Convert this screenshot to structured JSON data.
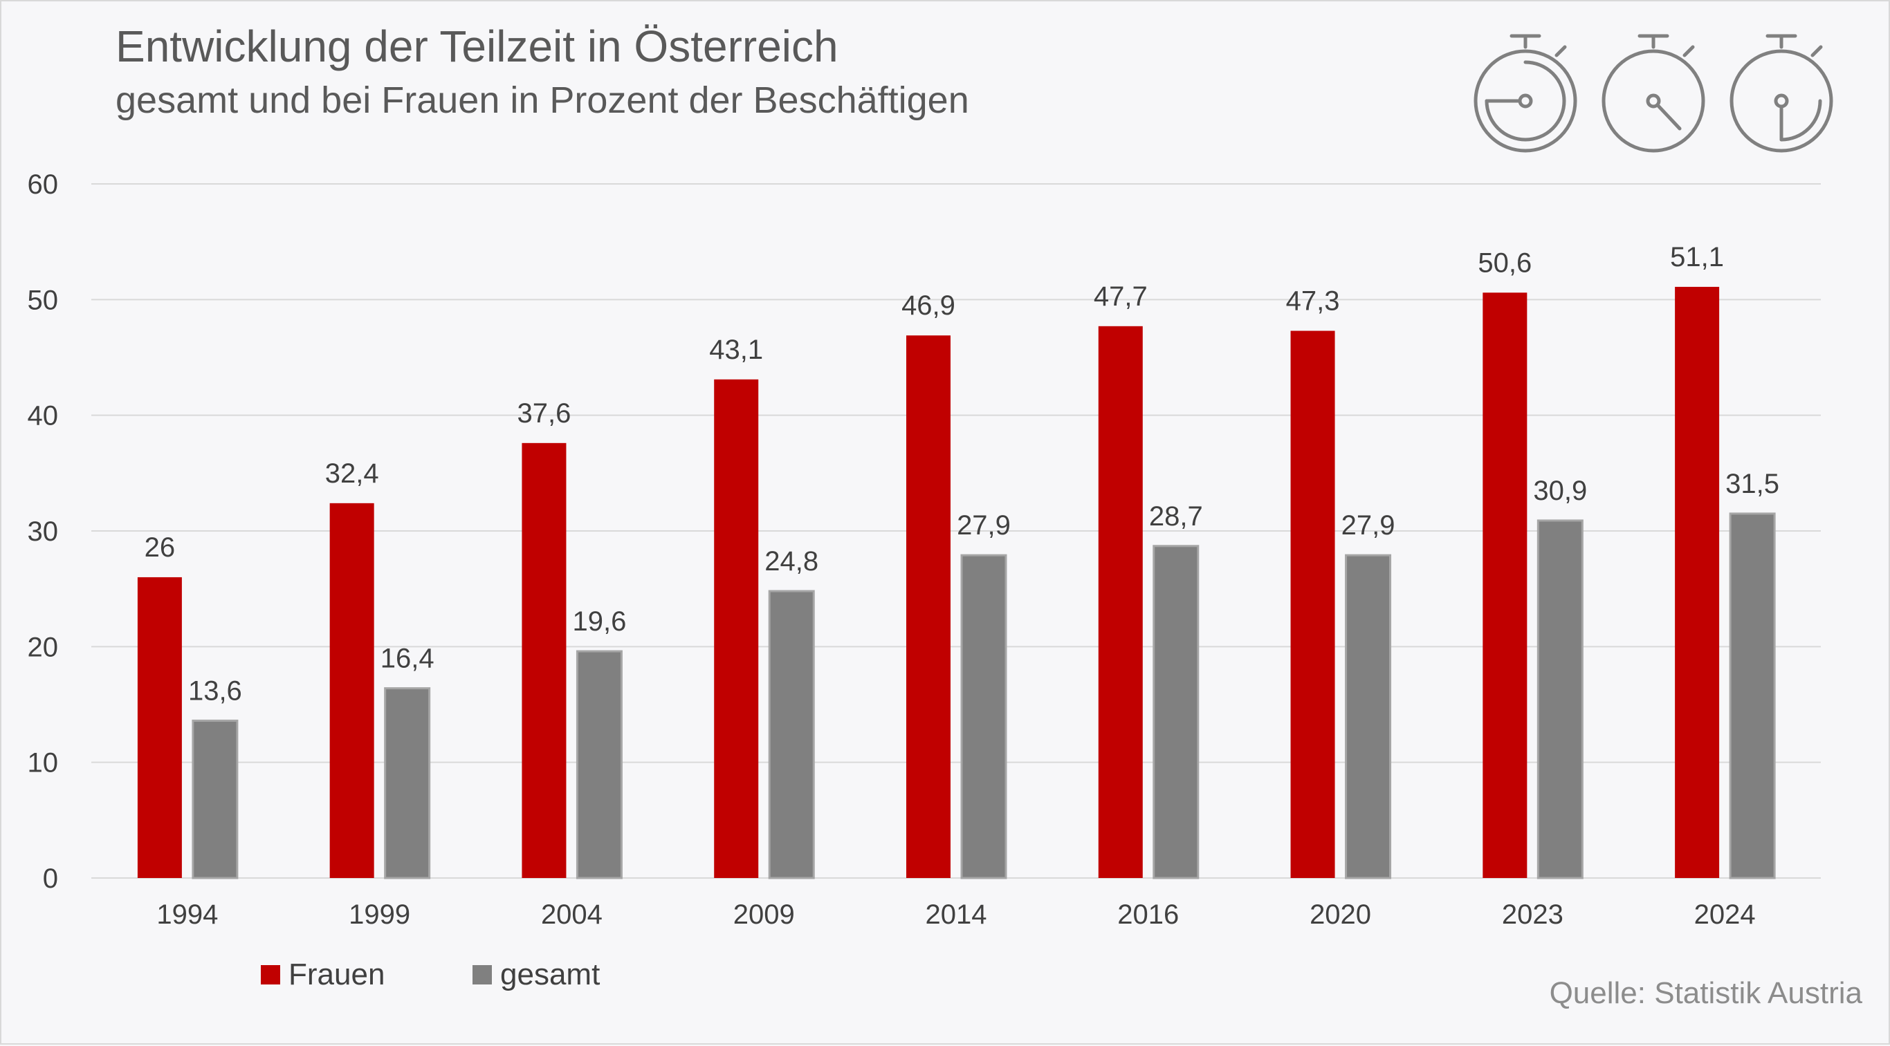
{
  "title": "Entwicklung der Teilzeit in Österreich",
  "subtitle": "gesamt und bei Frauen in Prozent der Beschäftigen",
  "source": "Quelle: Statistik Austria",
  "icons": [
    "stopwatch-icon",
    "stopwatch-icon",
    "stopwatch-icon"
  ],
  "colors": {
    "frauen": "#c00000",
    "gesamt": "#808080",
    "grid": "#d9d9d9",
    "text": "#404040"
  },
  "chart_data": {
    "type": "bar",
    "title": "Entwicklung der Teilzeit in Österreich",
    "subtitle": "gesamt und bei Frauen in Prozent der Beschäftigen",
    "xlabel": "",
    "ylabel": "",
    "ylim": [
      0,
      60
    ],
    "yticks": [
      0,
      10,
      20,
      30,
      40,
      50,
      60
    ],
    "grid": true,
    "legend_position": "bottom-left",
    "categories": [
      "1994",
      "1999",
      "2004",
      "2009",
      "2014",
      "2016",
      "2020",
      "2023",
      "2024"
    ],
    "series": [
      {
        "name": "Frauen",
        "values": [
          26,
          32.4,
          37.6,
          43.1,
          46.9,
          47.7,
          47.3,
          50.6,
          51.1
        ],
        "labels": [
          "26",
          "32,4",
          "37,6",
          "43,1",
          "46,9",
          "47,7",
          "47,3",
          "50,6",
          "51,1"
        ]
      },
      {
        "name": "gesamt",
        "values": [
          13.6,
          16.4,
          19.6,
          24.8,
          27.9,
          28.7,
          27.9,
          30.9,
          31.5
        ],
        "labels": [
          "13,6",
          "16,4",
          "19,6",
          "24,8",
          "27,9",
          "28,7",
          "27,9",
          "30,9",
          "31,5"
        ]
      }
    ]
  }
}
